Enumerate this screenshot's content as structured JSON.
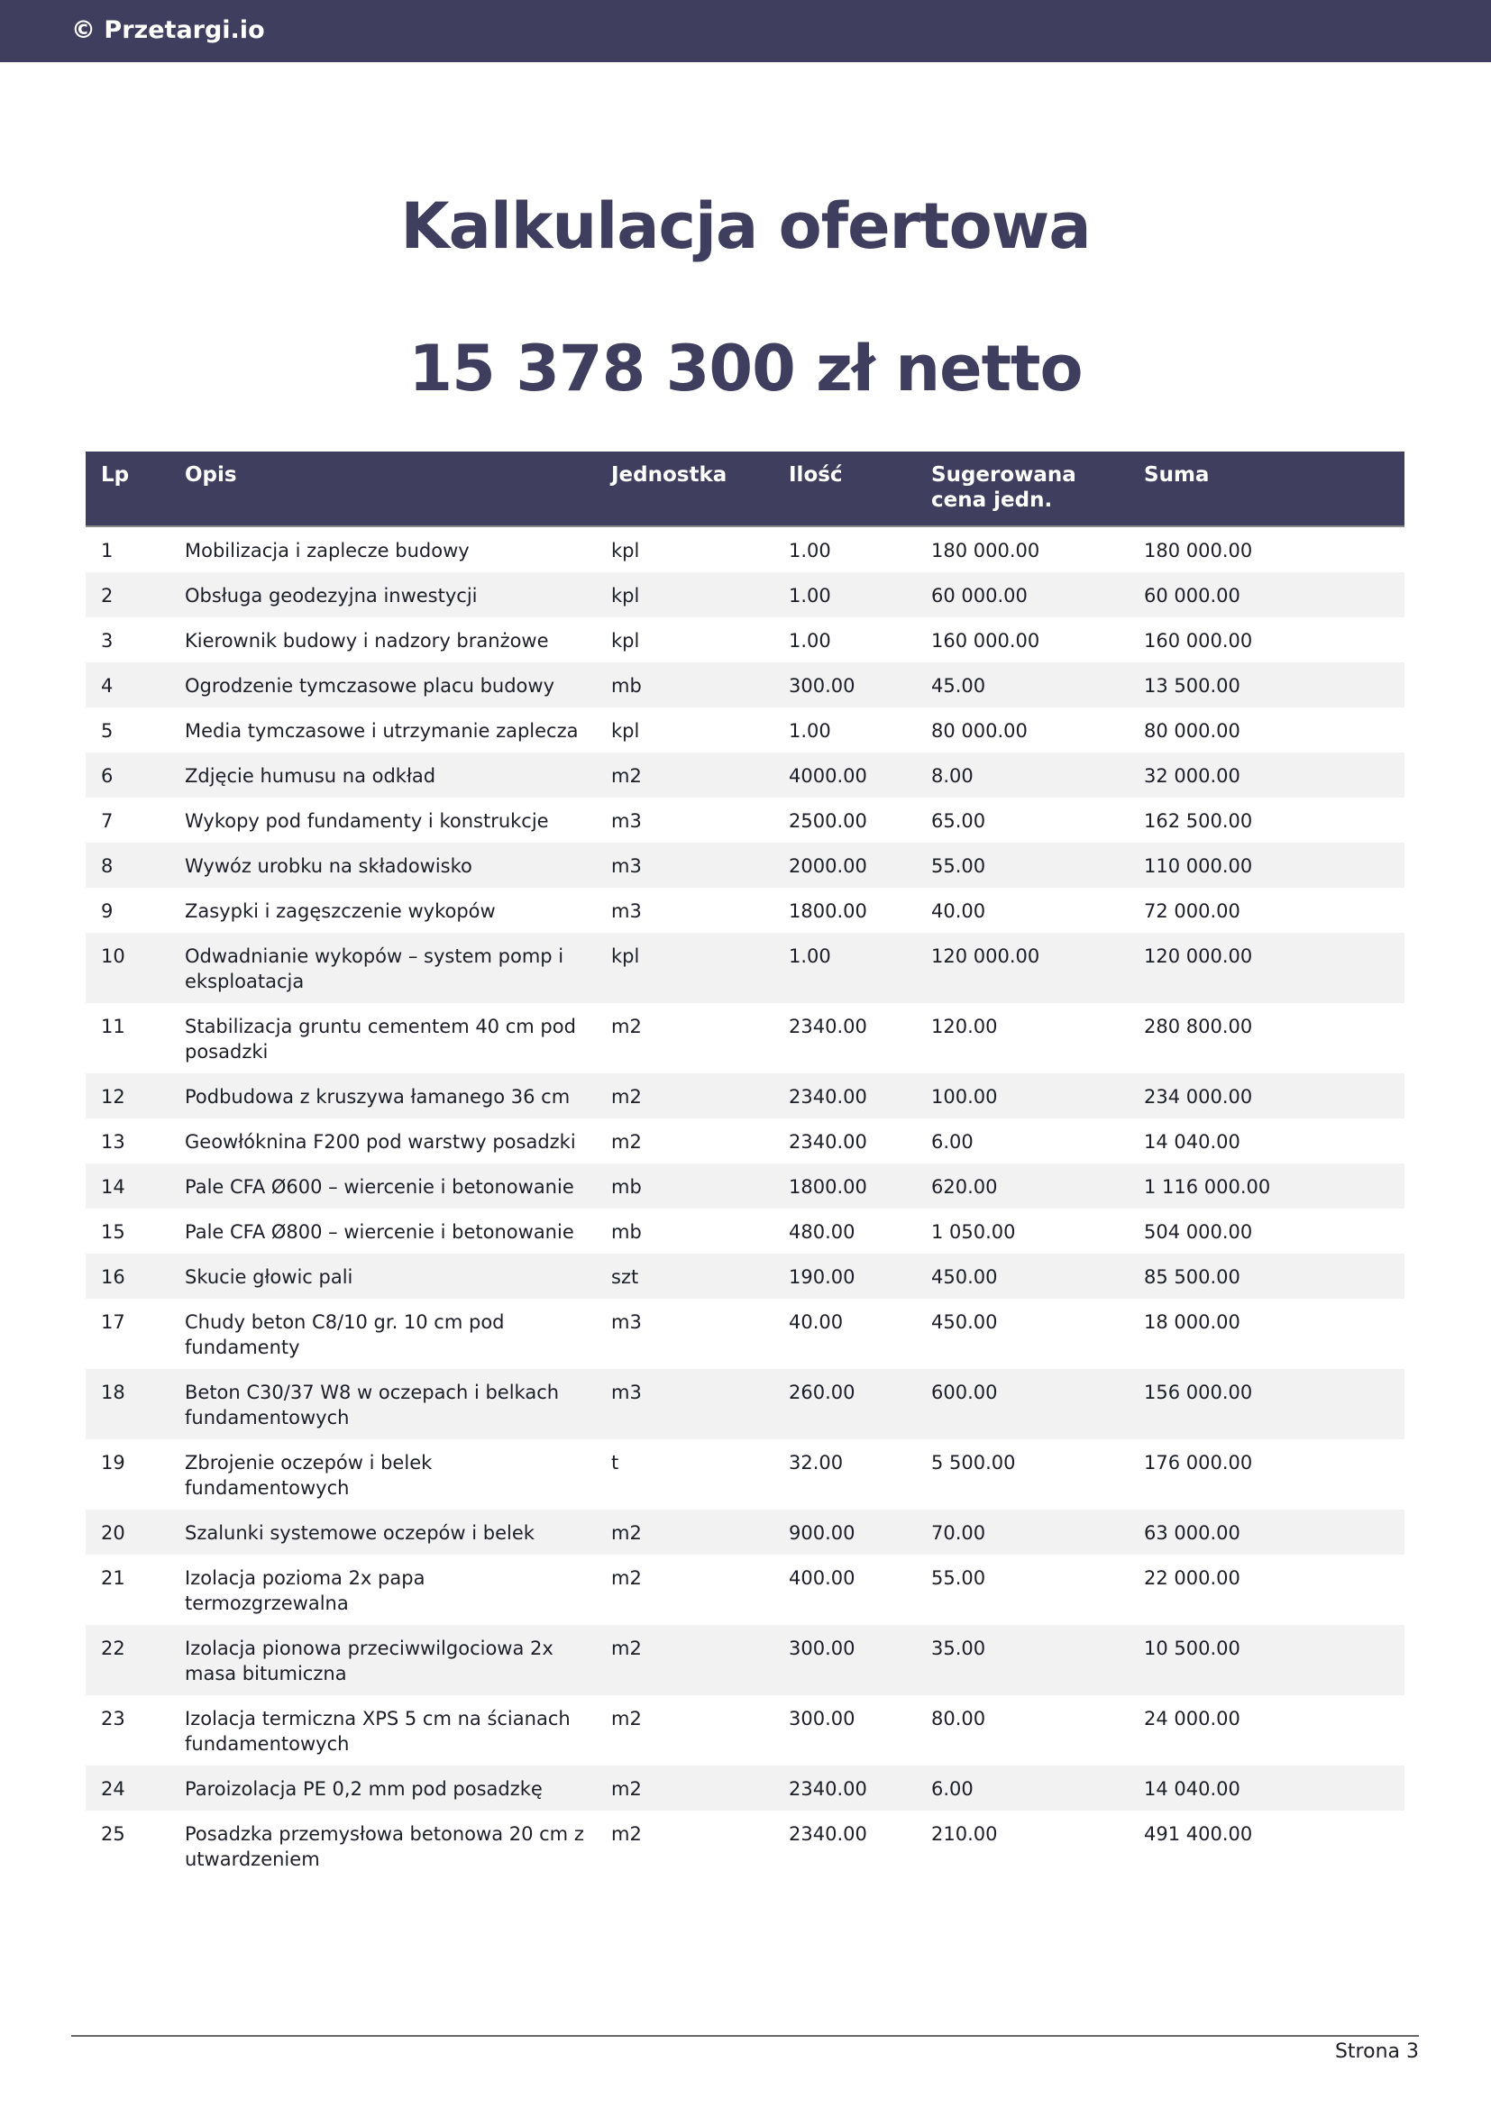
{
  "header": {
    "brand": "© Przetargi.io"
  },
  "title": "Kalkulacja ofertowa",
  "total": "15 378 300 zł netto",
  "table": {
    "columns": [
      "Lp",
      "Opis",
      "Jednostka",
      "Ilość",
      "Sugerowana cena jedn.",
      "Suma"
    ],
    "rows": [
      [
        "1",
        "Mobilizacja i zaplecze budowy",
        "kpl",
        "1.00",
        "180 000.00",
        "180 000.00"
      ],
      [
        "2",
        "Obsługa geodezyjna inwestycji",
        "kpl",
        "1.00",
        "60 000.00",
        "60 000.00"
      ],
      [
        "3",
        "Kierownik budowy i nadzory branżowe",
        "kpl",
        "1.00",
        "160 000.00",
        "160 000.00"
      ],
      [
        "4",
        "Ogrodzenie tymczasowe placu budowy",
        "mb",
        "300.00",
        "45.00",
        "13 500.00"
      ],
      [
        "5",
        "Media tymczasowe i utrzymanie zaplecza",
        "kpl",
        "1.00",
        "80 000.00",
        "80 000.00"
      ],
      [
        "6",
        "Zdjęcie humusu na odkład",
        "m2",
        "4000.00",
        "8.00",
        "32 000.00"
      ],
      [
        "7",
        "Wykopy pod fundamenty i konstrukcje",
        "m3",
        "2500.00",
        "65.00",
        "162 500.00"
      ],
      [
        "8",
        "Wywóz urobku na składowisko",
        "m3",
        "2000.00",
        "55.00",
        "110 000.00"
      ],
      [
        "9",
        "Zasypki i zagęszczenie wykopów",
        "m3",
        "1800.00",
        "40.00",
        "72 000.00"
      ],
      [
        "10",
        "Odwadnianie wykopów – system pomp i eksploatacja",
        "kpl",
        "1.00",
        "120 000.00",
        "120 000.00"
      ],
      [
        "11",
        "Stabilizacja gruntu cementem 40 cm pod posadzki",
        "m2",
        "2340.00",
        "120.00",
        "280 800.00"
      ],
      [
        "12",
        "Podbudowa z kruszywa łamanego 36 cm",
        "m2",
        "2340.00",
        "100.00",
        "234 000.00"
      ],
      [
        "13",
        "Geowłóknina F200 pod warstwy posadzki",
        "m2",
        "2340.00",
        "6.00",
        "14 040.00"
      ],
      [
        "14",
        "Pale CFA Ø600 – wiercenie i betonowanie",
        "mb",
        "1800.00",
        "620.00",
        "1 116 000.00"
      ],
      [
        "15",
        "Pale CFA Ø800 – wiercenie i betonowanie",
        "mb",
        "480.00",
        "1 050.00",
        "504 000.00"
      ],
      [
        "16",
        "Skucie głowic pali",
        "szt",
        "190.00",
        "450.00",
        "85 500.00"
      ],
      [
        "17",
        "Chudy beton C8/10 gr. 10 cm pod fundamenty",
        "m3",
        "40.00",
        "450.00",
        "18 000.00"
      ],
      [
        "18",
        "Beton C30/37 W8 w oczepach i belkach fundamentowych",
        "m3",
        "260.00",
        "600.00",
        "156 000.00"
      ],
      [
        "19",
        "Zbrojenie oczepów i belek fundamentowych",
        "t",
        "32.00",
        "5 500.00",
        "176 000.00"
      ],
      [
        "20",
        "Szalunki systemowe oczepów i belek",
        "m2",
        "900.00",
        "70.00",
        "63 000.00"
      ],
      [
        "21",
        "Izolacja pozioma 2x papa termozgrzewalna",
        "m2",
        "400.00",
        "55.00",
        "22 000.00"
      ],
      [
        "22",
        "Izolacja pionowa przeciwwilgociowa 2x masa bitumiczna",
        "m2",
        "300.00",
        "35.00",
        "10 500.00"
      ],
      [
        "23",
        "Izolacja termiczna XPS 5 cm na ścianach fundamentowych",
        "m2",
        "300.00",
        "80.00",
        "24 000.00"
      ],
      [
        "24",
        "Paroizolacja PE 0,2 mm pod posadzkę",
        "m2",
        "2340.00",
        "6.00",
        "14 040.00"
      ],
      [
        "25",
        "Posadzka przemysłowa betonowa 20 cm z utwardzeniem",
        "m2",
        "2340.00",
        "210.00",
        "491 400.00"
      ]
    ]
  },
  "footer": {
    "page": "Strona 3"
  }
}
